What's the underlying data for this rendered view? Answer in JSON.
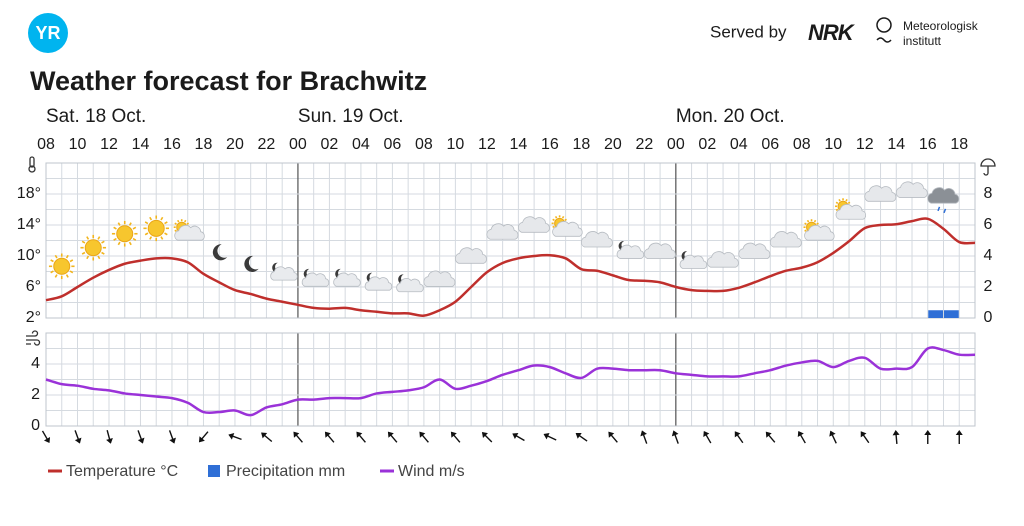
{
  "header": {
    "logo": "YR",
    "served_by": "Served by",
    "nrk": "NRK",
    "met": [
      "Meteorologisk",
      "institutt"
    ]
  },
  "chart_data": [
    {
      "type": "line",
      "title": "Weather forecast for Brachwitz",
      "days": [
        "Sat. 18 Oct.",
        "Sun. 19 Oct.",
        "Mon. 20 Oct."
      ],
      "categories": [
        "08",
        null,
        "10",
        null,
        "12",
        null,
        "14",
        null,
        "16",
        null,
        "18",
        null,
        "20",
        null,
        "22",
        null,
        "00",
        null,
        "02",
        null,
        "04",
        null,
        "06",
        null,
        "08",
        null,
        "10",
        null,
        "12",
        null,
        "14",
        null,
        "16",
        null,
        "18",
        null,
        "20",
        null,
        "22",
        null,
        "00",
        null,
        "02",
        null,
        "04",
        null,
        "06",
        null,
        "08",
        null,
        "10",
        null,
        "12",
        null,
        "14",
        null,
        "16",
        null,
        "18",
        null
      ],
      "ylim": [
        2,
        22
      ],
      "yticks": [
        {
          "value": 2,
          "label": "2°"
        },
        {
          "value": 6,
          "label": "6°"
        },
        {
          "value": 10,
          "label": "10°"
        },
        {
          "value": 14,
          "label": "14°"
        },
        {
          "value": 18,
          "label": "18°"
        }
      ],
      "y2lim": [
        0,
        10
      ],
      "y2ticks": [
        0,
        2,
        4,
        6,
        8
      ],
      "grid": true,
      "series": [
        {
          "name": "Temperature °C",
          "color": "#bf2f2c",
          "values": [
            4.3,
            4.8,
            6.0,
            7.2,
            8.2,
            9.0,
            9.4,
            9.7,
            9.7,
            9.2,
            7.7,
            6.6,
            5.6,
            5.1,
            4.5,
            4.1,
            3.7,
            3.3,
            3.2,
            3.3,
            3.0,
            2.8,
            2.6,
            2.6,
            2.3,
            3.0,
            4.1,
            6.0,
            7.9,
            9.1,
            9.7,
            10.0,
            10.1,
            9.7,
            8.3,
            8.1,
            7.5,
            6.9,
            6.8,
            6.6,
            6.0,
            5.6,
            5.5,
            5.5,
            5.9,
            6.6,
            7.4,
            8.1,
            8.5,
            9.2,
            10.4,
            11.9,
            13.6,
            14.0,
            14.1,
            14.5,
            14.8,
            13.5,
            11.8,
            11.7
          ]
        },
        {
          "name": "Precipitation mm",
          "color": "#2f6fd6",
          "axis": "y2",
          "values": [
            0,
            0,
            0,
            0,
            0,
            0,
            0,
            0,
            0,
            0,
            0,
            0,
            0,
            0,
            0,
            0,
            0,
            0,
            0,
            0,
            0,
            0,
            0,
            0,
            0,
            0,
            0,
            0,
            0,
            0,
            0,
            0,
            0,
            0,
            0,
            0,
            0,
            0,
            0,
            0,
            0,
            0,
            0,
            0,
            0,
            0,
            0,
            0,
            0,
            0,
            0,
            0,
            0,
            0,
            0,
            0,
            0.5,
            0.5,
            0,
            0
          ]
        }
      ]
    },
    {
      "type": "line",
      "ylim": [
        0,
        6
      ],
      "yticks": [
        0,
        2,
        4
      ],
      "grid": true,
      "series": [
        {
          "name": "Wind m/s",
          "color": "#9a32d8",
          "values": [
            3.0,
            2.7,
            2.6,
            2.4,
            2.3,
            2.1,
            2.0,
            1.9,
            1.8,
            1.5,
            0.9,
            0.9,
            1.0,
            0.7,
            1.2,
            1.4,
            1.7,
            1.7,
            1.8,
            1.8,
            1.8,
            2.1,
            2.2,
            2.3,
            2.5,
            3.0,
            2.4,
            2.6,
            2.9,
            3.3,
            3.6,
            3.9,
            3.8,
            3.4,
            3.1,
            3.7,
            3.7,
            3.6,
            3.6,
            3.6,
            3.4,
            3.3,
            3.2,
            3.2,
            3.2,
            3.4,
            3.6,
            3.9,
            4.1,
            4.2,
            3.8,
            4.2,
            4.4,
            3.7,
            3.7,
            3.8,
            5.0,
            4.9,
            4.6,
            4.6
          ]
        }
      ],
      "wind_direction": [
        150,
        160,
        165,
        160,
        160,
        220,
        290,
        310,
        320,
        320,
        320,
        320,
        320,
        320,
        315,
        300,
        295,
        305,
        320,
        340,
        340,
        330,
        325,
        320,
        330,
        335,
        325,
        355,
        0,
        0
      ]
    }
  ]
}
